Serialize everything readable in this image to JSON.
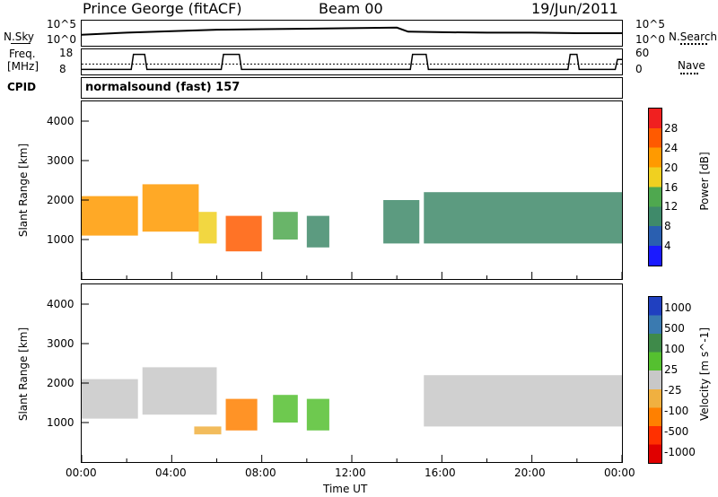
{
  "header": {
    "station": "Prince George (fitACF)",
    "beam": "Beam 00",
    "date": "19/Jun/2011"
  },
  "left_labels": {
    "nsky": "N.Sky",
    "freq_line1": "Freq.",
    "freq_line2": "[MHz]",
    "cpid": "CPID"
  },
  "right_labels": {
    "nsearch": "N.Search",
    "nave": "Nave"
  },
  "noise_panel": {
    "left_ticks": [
      "10^5",
      "10^0"
    ],
    "right_ticks": [
      "10^5",
      "10^0"
    ]
  },
  "freq_panel": {
    "left_ticks": [
      "18",
      "8"
    ],
    "right_ticks": [
      "60",
      "0"
    ]
  },
  "cpid_text": "normalsound (fast) 157",
  "colors": {
    "power": [
      "#1a1aff",
      "#2a5fb0",
      "#3f8a6a",
      "#4fa84f",
      "#f0d020",
      "#ff9a00",
      "#ff5a00",
      "#f02020"
    ],
    "velocity": [
      "#2040c0",
      "#3a7ab0",
      "#3f8a4a",
      "#55c030",
      "#c8c8c8",
      "#f0b040",
      "#ff8000",
      "#ff3000",
      "#e00000"
    ]
  },
  "chart_data": [
    {
      "type": "heatmap",
      "title": "",
      "xlabel": "Time UT",
      "ylabel": "Slant Range [km]",
      "x_ticks": [
        "00:00",
        "04:00",
        "08:00",
        "12:00",
        "16:00",
        "20:00",
        "00:00"
      ],
      "y_ticks": [
        "1000",
        "2000",
        "3000",
        "4000"
      ],
      "ylim": [
        0,
        4500
      ],
      "colorbar": {
        "label": "Power [dB]",
        "ticks": [
          "4",
          "8",
          "12",
          "16",
          "20",
          "24",
          "28"
        ],
        "range": [
          0,
          30
        ]
      },
      "echo_regions": [
        {
          "t0": 0.0,
          "t1": 2.5,
          "r0": 1100,
          "r1": 2100,
          "level": 20
        },
        {
          "t0": 2.7,
          "t1": 5.2,
          "r0": 1200,
          "r1": 2400,
          "level": 22
        },
        {
          "t0": 5.2,
          "t1": 6.0,
          "r0": 900,
          "r1": 1700,
          "level": 16
        },
        {
          "t0": 6.4,
          "t1": 8.0,
          "r0": 700,
          "r1": 1600,
          "level": 26
        },
        {
          "t0": 8.5,
          "t1": 9.6,
          "r0": 1000,
          "r1": 1700,
          "level": 12
        },
        {
          "t0": 10.0,
          "t1": 11.0,
          "r0": 800,
          "r1": 1600,
          "level": 10
        },
        {
          "t0": 13.4,
          "t1": 15.0,
          "r0": 900,
          "r1": 2000,
          "level": 8
        },
        {
          "t0": 15.2,
          "t1": 24.0,
          "r0": 900,
          "r1": 2200,
          "level": 10
        }
      ]
    },
    {
      "type": "heatmap",
      "title": "",
      "xlabel": "Time UT",
      "ylabel": "Slant Range [km]",
      "x_ticks": [
        "00:00",
        "04:00",
        "08:00",
        "12:00",
        "16:00",
        "20:00",
        "00:00"
      ],
      "y_ticks": [
        "1000",
        "2000",
        "3000",
        "4000"
      ],
      "ylim": [
        0,
        4500
      ],
      "colorbar": {
        "label": "Velocity [m s^-1]",
        "ticks": [
          "1000",
          "500",
          "100",
          "25",
          "-25",
          "-100",
          "-500",
          "-1000"
        ],
        "range": [
          -1500,
          1500
        ]
      },
      "echo_regions": [
        {
          "t0": 0.0,
          "t1": 2.5,
          "r0": 1100,
          "r1": 2100,
          "level": 0
        },
        {
          "t0": 2.7,
          "t1": 6.0,
          "r0": 1200,
          "r1": 2400,
          "level": 0
        },
        {
          "t0": 5.0,
          "t1": 6.2,
          "r0": 700,
          "r1": 900,
          "level": -300
        },
        {
          "t0": 6.4,
          "t1": 7.8,
          "r0": 800,
          "r1": 1600,
          "level": -600
        },
        {
          "t0": 8.5,
          "t1": 9.6,
          "r0": 1000,
          "r1": 1700,
          "level": 200
        },
        {
          "t0": 10.0,
          "t1": 11.0,
          "r0": 800,
          "r1": 1600,
          "level": 300
        },
        {
          "t0": 15.2,
          "t1": 24.0,
          "r0": 900,
          "r1": 2200,
          "level": 0
        }
      ]
    }
  ],
  "series_top": [
    {
      "name": "N.Sky",
      "x": [
        0,
        2,
        4,
        6,
        8,
        10,
        12,
        14,
        14.5,
        16,
        18,
        20,
        22,
        24
      ],
      "y": [
        2.2,
        2.6,
        2.9,
        3.2,
        3.3,
        3.4,
        3.5,
        3.6,
        2.8,
        2.7,
        2.6,
        2.6,
        2.5,
        2.5
      ]
    },
    {
      "name": "Freq",
      "x": [
        0,
        2.2,
        2.3,
        2.8,
        2.9,
        6.2,
        6.3,
        7.0,
        7.1,
        14.6,
        14.7,
        15.3,
        15.4,
        21.6,
        21.7,
        22.0,
        22.1,
        23.7,
        23.8,
        24
      ],
      "y": [
        10,
        10,
        16,
        16,
        10,
        10,
        16,
        16,
        10,
        10,
        16,
        16,
        10,
        10,
        16,
        16,
        10,
        10,
        14,
        14
      ]
    },
    {
      "name": "Nave",
      "x": [
        0,
        24
      ],
      "y": [
        25,
        25
      ]
    }
  ]
}
